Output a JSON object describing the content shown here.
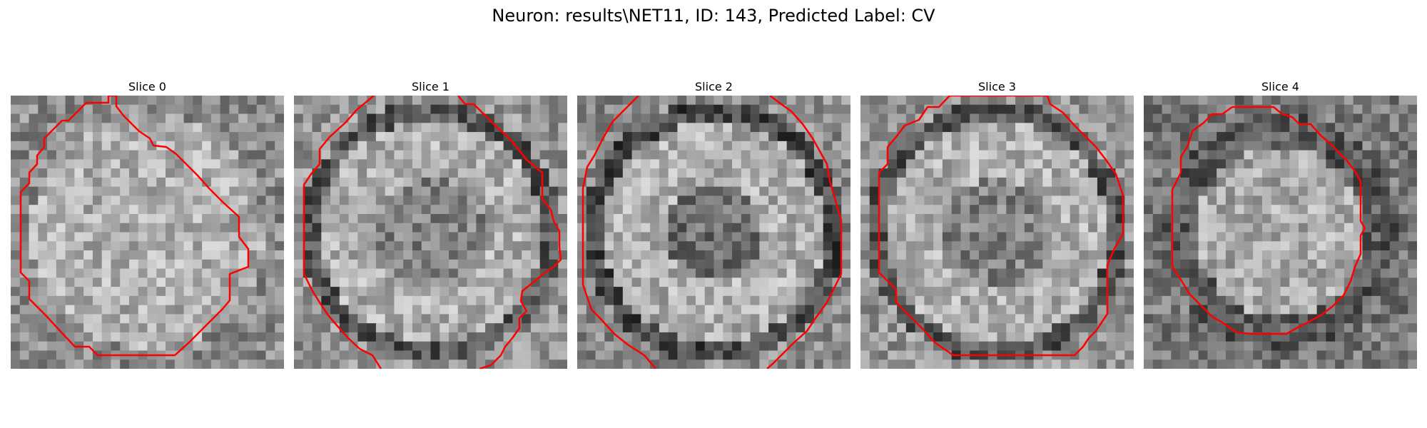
{
  "figure": {
    "title": "Neuron: results\\NET11, ID: 143, Predicted Label: CV"
  },
  "contour_color": "#ff0000",
  "panels": [
    {
      "title": "Slice 0",
      "seed": 11,
      "pattern": "ring-faint",
      "contour": "c0"
    },
    {
      "title": "Slice 1",
      "seed": 23,
      "pattern": "ring-bright",
      "contour": "c1"
    },
    {
      "title": "Slice 2",
      "seed": 37,
      "pattern": "ring-dark-center",
      "contour": "c2"
    },
    {
      "title": "Slice 3",
      "seed": 53,
      "pattern": "ring-bright",
      "contour": "c3"
    },
    {
      "title": "Slice 4",
      "seed": 71,
      "pattern": "ring-dark-outside",
      "contour": "c4"
    }
  ]
}
